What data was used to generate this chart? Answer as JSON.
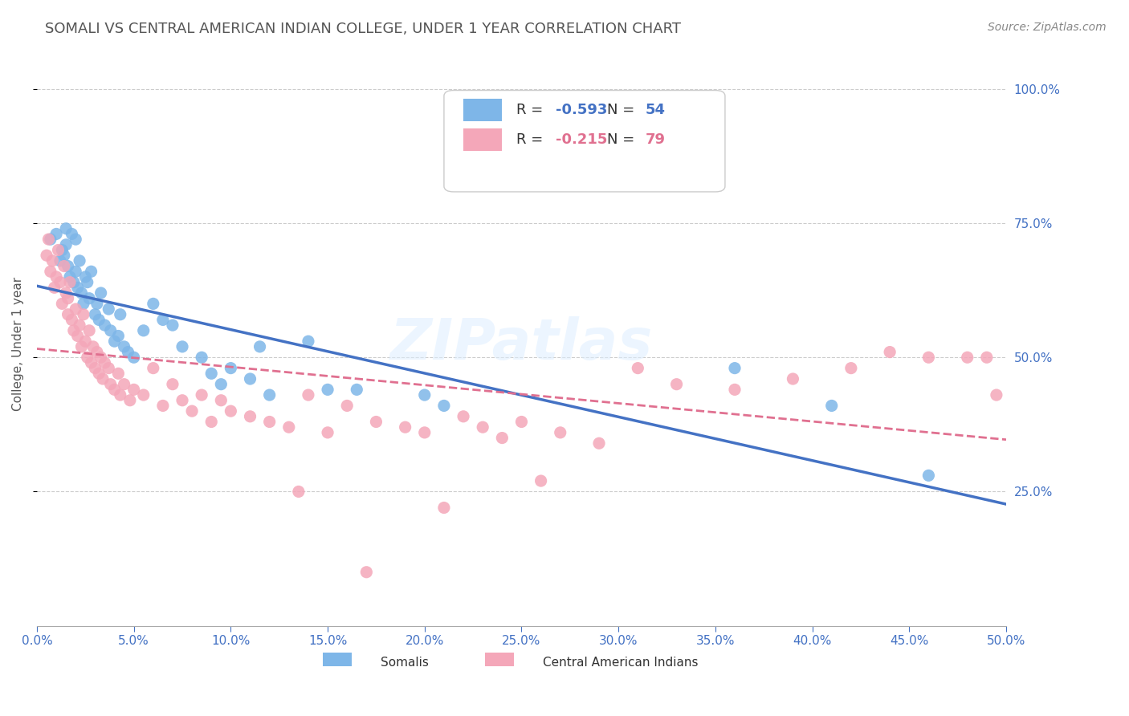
{
  "title": "SOMALI VS CENTRAL AMERICAN INDIAN COLLEGE, UNDER 1 YEAR CORRELATION CHART",
  "source": "Source: ZipAtlas.com",
  "ylabel_label": "College, Under 1 year",
  "xlim": [
    0.0,
    0.5
  ],
  "ylim": [
    0.0,
    1.05
  ],
  "ytick_labels_right": [
    "25.0%",
    "50.0%",
    "75.0%",
    "100.0%"
  ],
  "somali_R": "-0.593",
  "somali_N": "54",
  "central_american_R": "-0.215",
  "central_american_N": "79",
  "somali_color": "#7EB6E8",
  "central_american_color": "#F4A7B9",
  "trendline_somali_color": "#4472C4",
  "trendline_central_color": "#E07090",
  "watermark": "ZIPatlas",
  "somali_x": [
    0.007,
    0.01,
    0.012,
    0.013,
    0.014,
    0.015,
    0.015,
    0.016,
    0.017,
    0.018,
    0.019,
    0.02,
    0.02,
    0.021,
    0.022,
    0.023,
    0.024,
    0.025,
    0.026,
    0.027,
    0.028,
    0.03,
    0.031,
    0.032,
    0.033,
    0.035,
    0.037,
    0.038,
    0.04,
    0.042,
    0.043,
    0.045,
    0.047,
    0.05,
    0.055,
    0.06,
    0.065,
    0.07,
    0.075,
    0.085,
    0.09,
    0.095,
    0.1,
    0.11,
    0.115,
    0.12,
    0.14,
    0.15,
    0.165,
    0.2,
    0.21,
    0.36,
    0.41,
    0.46
  ],
  "somali_y": [
    0.72,
    0.73,
    0.68,
    0.7,
    0.69,
    0.71,
    0.74,
    0.67,
    0.65,
    0.73,
    0.64,
    0.66,
    0.72,
    0.63,
    0.68,
    0.62,
    0.6,
    0.65,
    0.64,
    0.61,
    0.66,
    0.58,
    0.6,
    0.57,
    0.62,
    0.56,
    0.59,
    0.55,
    0.53,
    0.54,
    0.58,
    0.52,
    0.51,
    0.5,
    0.55,
    0.6,
    0.57,
    0.56,
    0.52,
    0.5,
    0.47,
    0.45,
    0.48,
    0.46,
    0.52,
    0.43,
    0.53,
    0.44,
    0.44,
    0.43,
    0.41,
    0.48,
    0.41,
    0.28
  ],
  "central_x": [
    0.005,
    0.006,
    0.007,
    0.008,
    0.009,
    0.01,
    0.011,
    0.012,
    0.013,
    0.014,
    0.015,
    0.016,
    0.016,
    0.017,
    0.018,
    0.019,
    0.02,
    0.021,
    0.022,
    0.023,
    0.024,
    0.025,
    0.026,
    0.027,
    0.028,
    0.029,
    0.03,
    0.031,
    0.032,
    0.033,
    0.034,
    0.035,
    0.037,
    0.038,
    0.04,
    0.042,
    0.043,
    0.045,
    0.048,
    0.05,
    0.055,
    0.06,
    0.065,
    0.07,
    0.075,
    0.08,
    0.085,
    0.09,
    0.095,
    0.1,
    0.11,
    0.12,
    0.13,
    0.14,
    0.15,
    0.16,
    0.175,
    0.19,
    0.2,
    0.21,
    0.22,
    0.24,
    0.25,
    0.27,
    0.29,
    0.31,
    0.33,
    0.36,
    0.39,
    0.42,
    0.44,
    0.46,
    0.48,
    0.49,
    0.495,
    0.26,
    0.17,
    0.135,
    0.23
  ],
  "central_y": [
    0.69,
    0.72,
    0.66,
    0.68,
    0.63,
    0.65,
    0.7,
    0.64,
    0.6,
    0.67,
    0.62,
    0.58,
    0.61,
    0.64,
    0.57,
    0.55,
    0.59,
    0.54,
    0.56,
    0.52,
    0.58,
    0.53,
    0.5,
    0.55,
    0.49,
    0.52,
    0.48,
    0.51,
    0.47,
    0.5,
    0.46,
    0.49,
    0.48,
    0.45,
    0.44,
    0.47,
    0.43,
    0.45,
    0.42,
    0.44,
    0.43,
    0.48,
    0.41,
    0.45,
    0.42,
    0.4,
    0.43,
    0.38,
    0.42,
    0.4,
    0.39,
    0.38,
    0.37,
    0.43,
    0.36,
    0.41,
    0.38,
    0.37,
    0.36,
    0.22,
    0.39,
    0.35,
    0.38,
    0.36,
    0.34,
    0.48,
    0.45,
    0.44,
    0.46,
    0.48,
    0.51,
    0.5,
    0.5,
    0.5,
    0.43,
    0.27,
    0.1,
    0.25,
    0.37
  ],
  "background_color": "#FFFFFF",
  "grid_color": "#CCCCCC",
  "title_color": "#555555",
  "axis_color": "#4472C4"
}
